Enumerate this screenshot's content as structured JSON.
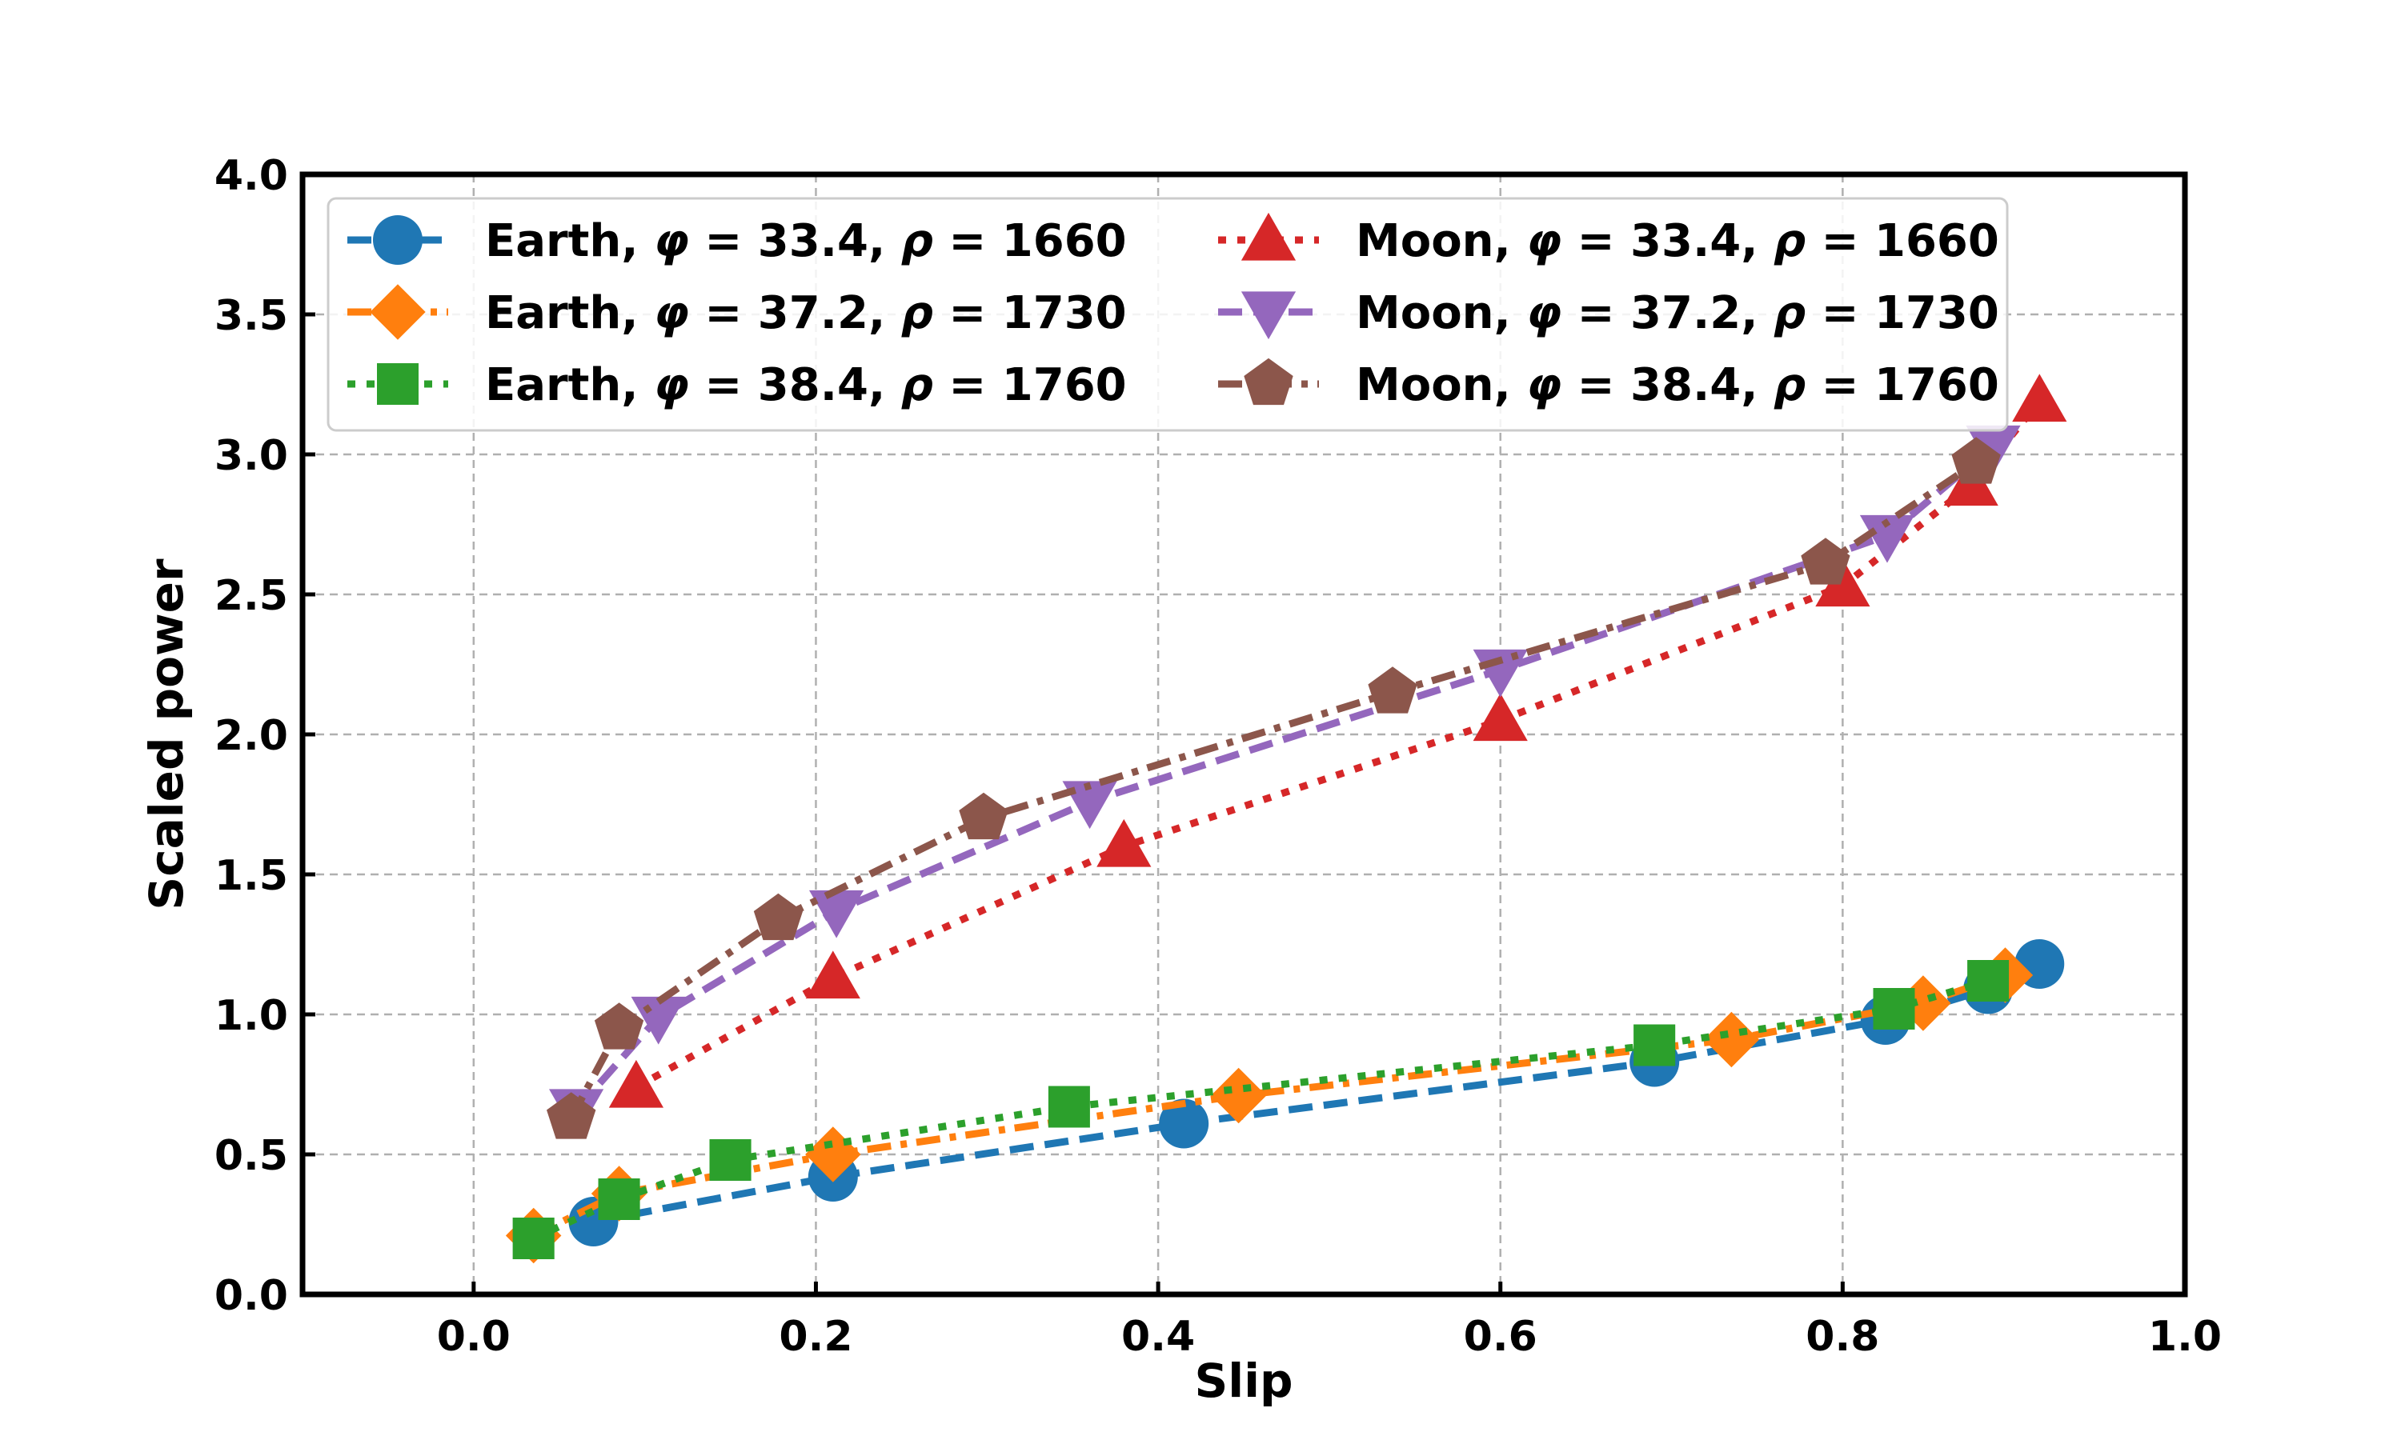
{
  "chart_data": {
    "type": "line",
    "title": "",
    "xlabel": "Slip",
    "ylabel": "Scaled power",
    "xlim": [
      -0.1,
      1.0
    ],
    "ylim": [
      0.0,
      4.0
    ],
    "xticks": [
      "0.0",
      "0.2",
      "0.4",
      "0.6",
      "0.8",
      "1.0"
    ],
    "yticks": [
      "0.0",
      "0.5",
      "1.0",
      "1.5",
      "2.0",
      "2.5",
      "3.0",
      "3.5",
      "4.0"
    ],
    "xtick_values": [
      0.0,
      0.2,
      0.4,
      0.6,
      0.8,
      1.0
    ],
    "ytick_values": [
      0.0,
      0.5,
      1.0,
      1.5,
      2.0,
      2.5,
      3.0,
      3.5,
      4.0
    ],
    "grid": true,
    "legend_position": "top-left",
    "series": [
      {
        "name": "Earth, φ = 33.4, ρ = 1660",
        "label_prefix": "Earth, ",
        "phi": "33.4",
        "rho": "1660",
        "color": "#1f77b4",
        "marker": "circle",
        "linestyle": "dashed",
        "x": [
          0.07,
          0.21,
          0.415,
          0.69,
          0.825,
          0.885,
          0.915
        ],
        "y": [
          0.26,
          0.42,
          0.61,
          0.83,
          0.98,
          1.09,
          1.18
        ]
      },
      {
        "name": "Earth, φ = 37.2, ρ = 1730",
        "label_prefix": "Earth, ",
        "phi": "37.2",
        "rho": "1730",
        "color": "#ff7f0e",
        "marker": "diamond",
        "linestyle": "dashdot",
        "x": [
          0.035,
          0.085,
          0.21,
          0.447,
          0.735,
          0.847,
          0.895
        ],
        "y": [
          0.21,
          0.36,
          0.5,
          0.71,
          0.91,
          1.04,
          1.14
        ]
      },
      {
        "name": "Earth, φ = 38.4, ρ = 1760",
        "label_prefix": "Earth, ",
        "phi": "38.4",
        "rho": "1760",
        "color": "#2ca02c",
        "marker": "square",
        "linestyle": "dotted",
        "x": [
          0.035,
          0.085,
          0.15,
          0.348,
          0.69,
          0.83,
          0.885
        ],
        "y": [
          0.2,
          0.34,
          0.48,
          0.67,
          0.89,
          1.02,
          1.12
        ]
      },
      {
        "name": "Moon, φ = 33.4, ρ = 1660",
        "label_prefix": "Moon, ",
        "phi": "33.4",
        "rho": "1660",
        "color": "#d62728",
        "marker": "triangle-up",
        "linestyle": "dotted",
        "x": [
          0.095,
          0.21,
          0.38,
          0.6,
          0.8,
          0.875,
          0.915
        ],
        "y": [
          0.74,
          1.13,
          1.6,
          2.05,
          2.53,
          2.89,
          3.19
        ]
      },
      {
        "name": "Moon, φ = 37.2, ρ = 1730",
        "label_prefix": "Moon, ",
        "phi": "37.2",
        "rho": "1730",
        "color": "#9467bd",
        "marker": "triangle-down",
        "linestyle": "dashed",
        "x": [
          0.06,
          0.108,
          0.212,
          0.36,
          0.6,
          0.826,
          0.888
        ],
        "y": [
          0.66,
          0.99,
          1.37,
          1.76,
          2.23,
          2.71,
          3.03
        ]
      },
      {
        "name": "Moon, φ = 38.4, ρ = 1760",
        "label_prefix": "Moon, ",
        "phi": "38.4",
        "rho": "1760",
        "color": "#8c564b",
        "marker": "pentagon",
        "linestyle": "dashdot",
        "x": [
          0.057,
          0.085,
          0.178,
          0.298,
          0.537,
          0.79,
          0.878
        ],
        "y": [
          0.63,
          0.95,
          1.34,
          1.7,
          2.15,
          2.61,
          2.97
        ]
      }
    ]
  }
}
